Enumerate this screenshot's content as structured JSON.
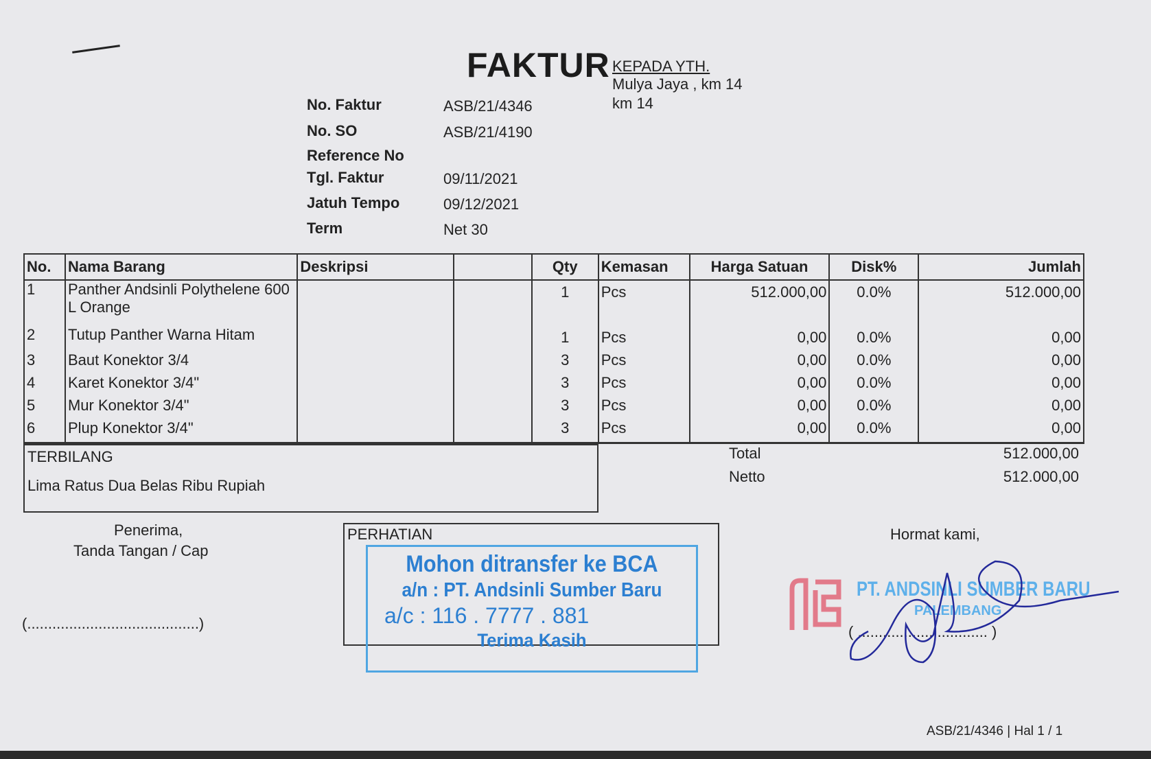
{
  "title": "FAKTUR",
  "recipient": {
    "heading": "KEPADA YTH.",
    "address_line1": "Mulya Jaya , km 14",
    "address_line2": "km 14"
  },
  "header_fields": [
    {
      "label": "No. Faktur",
      "value": "ASB/21/4346"
    },
    {
      "label": "No. SO",
      "value": "ASB/21/4190"
    },
    {
      "label": "Reference No",
      "value": ""
    },
    {
      "label": "Tgl. Faktur",
      "value": "09/11/2021"
    },
    {
      "label": "Jatuh Tempo",
      "value": "09/12/2021"
    },
    {
      "label": "Term",
      "value": "Net 30"
    }
  ],
  "table": {
    "columns": [
      "No.",
      "Nama Barang",
      "Deskripsi",
      "",
      "Qty",
      "Kemasan",
      "Harga Satuan",
      "Disk%",
      "Jumlah"
    ],
    "rows": [
      {
        "no": "1",
        "name": "Panther Andsinli Polythelene 600 L Orange",
        "qty": "1",
        "unit": "Pcs",
        "price": "512.000,00",
        "disc": "0.0%",
        "total": "512.000,00"
      },
      {
        "no": "2",
        "name": "Tutup Panther Warna Hitam",
        "qty": "1",
        "unit": "Pcs",
        "price": "0,00",
        "disc": "0.0%",
        "total": "0,00"
      },
      {
        "no": "3",
        "name": "Baut Konektor 3/4",
        "qty": "3",
        "unit": "Pcs",
        "price": "0,00",
        "disc": "0.0%",
        "total": "0,00"
      },
      {
        "no": "4",
        "name": "Karet Konektor 3/4\"",
        "qty": "3",
        "unit": "Pcs",
        "price": "0,00",
        "disc": "0.0%",
        "total": "0,00"
      },
      {
        "no": "5",
        "name": "Mur Konektor 3/4\"",
        "qty": "3",
        "unit": "Pcs",
        "price": "0,00",
        "disc": "0.0%",
        "total": "0,00"
      },
      {
        "no": "6",
        "name": "Plup Konektor 3/4\"",
        "qty": "3",
        "unit": "Pcs",
        "price": "0,00",
        "disc": "0.0%",
        "total": "0,00"
      }
    ]
  },
  "terbilang": {
    "label": "TERBILANG",
    "text": "Lima Ratus Dua Belas Ribu Rupiah"
  },
  "totals": {
    "total_label": "Total",
    "total_value": "512.000,00",
    "netto_label": "Netto",
    "netto_value": "512.000,00"
  },
  "receiver": {
    "line1": "Penerima,",
    "line2": "Tanda Tangan / Cap",
    "sign_line": "(.........................................)"
  },
  "notice": {
    "label": "PERHATIAN",
    "stamp_line1": "Mohon ditransfer ke BCA",
    "stamp_line2": "a/n : PT. Andsinli Sumber Baru",
    "stamp_line3": "a/c : 116 . 7777 . 881",
    "stamp_line4": "Terima Kasih"
  },
  "sender": {
    "greeting": "Hormat kami,",
    "logo_text": "ASB",
    "company_stamp": "PT. ANDSINLI SUMBER BARU",
    "company_city": "PALEMBANG",
    "sign_line": "( ............................... )"
  },
  "footer": "ASB/21/4346 | Hal 1 / 1",
  "colors": {
    "paper": "#e9e9ec",
    "stamp_blue": "#2c7fd1",
    "logo_red": "#e27a8a",
    "signature_ink": "#23299a"
  }
}
